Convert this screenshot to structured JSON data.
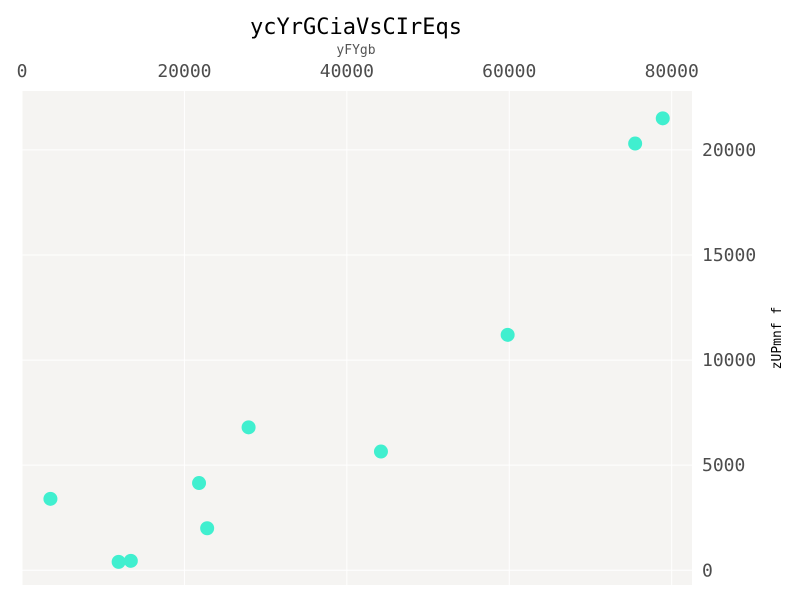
{
  "chart_data": {
    "type": "scatter",
    "title": "ycYrGCiaVsCIrEqs",
    "subtitle": "yFYgb",
    "xlabel": "",
    "ylabel": "zUPmnf f",
    "x_axis_position": "top",
    "y_axis_position": "right",
    "xlim": [
      0,
      82500
    ],
    "ylim": [
      -700,
      22800
    ],
    "x_ticks": [
      0,
      20000,
      40000,
      60000,
      80000
    ],
    "y_ticks": [
      0,
      5000,
      10000,
      15000,
      20000
    ],
    "grid": true,
    "colors": {
      "panel": "#f5f4f2",
      "point": "#40efcf",
      "grid": "#ffffff"
    },
    "points": [
      {
        "x": 3500,
        "y": 3400
      },
      {
        "x": 11900,
        "y": 400
      },
      {
        "x": 13400,
        "y": 450
      },
      {
        "x": 21800,
        "y": 4150
      },
      {
        "x": 22800,
        "y": 2000
      },
      {
        "x": 27900,
        "y": 6800
      },
      {
        "x": 44200,
        "y": 5650
      },
      {
        "x": 59800,
        "y": 11200
      },
      {
        "x": 75500,
        "y": 20300
      },
      {
        "x": 78900,
        "y": 21500
      }
    ]
  }
}
